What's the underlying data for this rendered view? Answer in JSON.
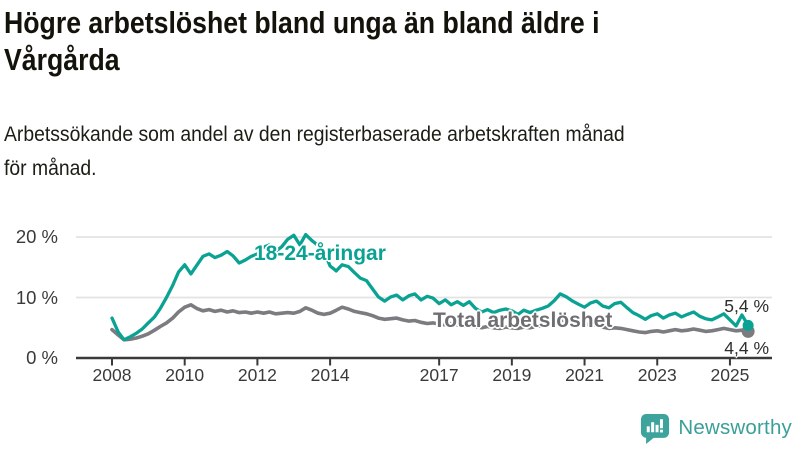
{
  "header": {
    "title_lines": [
      "Högre arbetslöshet bland unga än bland äldre i",
      "Vårgårda"
    ],
    "subtitle_lines": [
      "Arbetssökande som andel av den registerbaserade arbetskraften månad",
      "för månad."
    ]
  },
  "chart_data": {
    "type": "line",
    "title": "Högre arbetslöshet bland unga än bland äldre i Vårgårda",
    "subtitle": "Arbetssökande som andel av den registerbaserade arbetskraften månad för månad.",
    "unit": "%",
    "grid": "horizontal gridlines at 10 and 20, dark baseline at 0",
    "legend": "inline labels next to lines",
    "xlim": [
      2008,
      2025.6
    ],
    "ylim": [
      0,
      21
    ],
    "x_ticks": [
      2008,
      2010,
      2012,
      2014,
      2017,
      2019,
      2021,
      2023,
      2025
    ],
    "y_ticks": [
      {
        "value": 0,
        "label": "0 %"
      },
      {
        "value": 10,
        "label": "10 %"
      },
      {
        "value": 20,
        "label": "20 %"
      }
    ],
    "x": [
      2008,
      2008.17,
      2008.33,
      2008.5,
      2008.67,
      2008.83,
      2009,
      2009.17,
      2009.33,
      2009.5,
      2009.67,
      2009.83,
      2010,
      2010.17,
      2010.33,
      2010.5,
      2010.67,
      2010.83,
      2011,
      2011.17,
      2011.33,
      2011.5,
      2011.67,
      2011.83,
      2012,
      2012.17,
      2012.33,
      2012.5,
      2012.67,
      2012.83,
      2013,
      2013.17,
      2013.33,
      2013.5,
      2013.67,
      2013.83,
      2014,
      2014.17,
      2014.33,
      2014.5,
      2014.67,
      2014.83,
      2015,
      2015.17,
      2015.33,
      2015.5,
      2015.67,
      2015.83,
      2016,
      2016.17,
      2016.33,
      2016.5,
      2016.67,
      2016.83,
      2017,
      2017.17,
      2017.33,
      2017.5,
      2017.67,
      2017.83,
      2018,
      2018.17,
      2018.33,
      2018.5,
      2018.67,
      2018.83,
      2019,
      2019.17,
      2019.33,
      2019.5,
      2019.67,
      2019.83,
      2020,
      2020.17,
      2020.33,
      2020.5,
      2020.67,
      2020.83,
      2021,
      2021.17,
      2021.33,
      2021.5,
      2021.67,
      2021.83,
      2022,
      2022.17,
      2022.33,
      2022.5,
      2022.67,
      2022.83,
      2023,
      2023.17,
      2023.33,
      2023.5,
      2023.67,
      2023.83,
      2024,
      2024.17,
      2024.33,
      2024.5,
      2024.67,
      2024.83,
      2025,
      2025.17,
      2025.33,
      2025.5
    ],
    "series": [
      {
        "name": "18-24-åringar",
        "color": "#0aa293",
        "end_label": "5,4 %",
        "end_value": 5.4,
        "values": [
          6.6,
          4.3,
          3.0,
          3.5,
          4.1,
          4.8,
          5.8,
          6.8,
          8.2,
          10.0,
          12.0,
          14.2,
          15.4,
          13.9,
          15.3,
          16.8,
          17.2,
          16.6,
          17.0,
          17.6,
          16.9,
          15.7,
          16.2,
          16.8,
          17.2,
          18.3,
          18.7,
          17.6,
          18.4,
          19.6,
          20.3,
          18.7,
          20.4,
          19.4,
          18.6,
          17.6,
          15.2,
          14.4,
          15.4,
          15.1,
          14.1,
          13.2,
          12.8,
          11.4,
          10.1,
          9.4,
          10.1,
          10.4,
          9.6,
          10.3,
          10.6,
          9.6,
          10.2,
          9.9,
          9.0,
          9.6,
          8.8,
          9.3,
          8.7,
          9.3,
          8.2,
          7.6,
          8.0,
          7.5,
          7.9,
          8.1,
          7.8,
          7.2,
          7.9,
          7.5,
          7.9,
          8.2,
          8.6,
          9.5,
          10.6,
          10.1,
          9.4,
          8.9,
          8.4,
          9.1,
          9.4,
          8.6,
          8.3,
          9.0,
          9.2,
          8.3,
          7.5,
          7.0,
          6.4,
          7.0,
          7.3,
          6.6,
          7.1,
          7.4,
          6.8,
          7.2,
          7.6,
          6.9,
          6.5,
          6.3,
          6.8,
          7.3,
          6.3,
          5.3,
          7.1,
          5.4
        ]
      },
      {
        "name": "Total arbetslöshet",
        "color": "#7c7c80",
        "end_label": "4,4 %",
        "end_value": 4.4,
        "values": [
          4.7,
          3.8,
          3.0,
          3.1,
          3.3,
          3.6,
          4.0,
          4.6,
          5.2,
          5.8,
          6.6,
          7.6,
          8.4,
          8.8,
          8.2,
          7.8,
          8.0,
          7.7,
          7.9,
          7.6,
          7.8,
          7.5,
          7.6,
          7.4,
          7.6,
          7.4,
          7.6,
          7.3,
          7.4,
          7.5,
          7.4,
          7.7,
          8.3,
          7.9,
          7.4,
          7.2,
          7.4,
          7.9,
          8.4,
          8.1,
          7.7,
          7.5,
          7.3,
          7.0,
          6.6,
          6.4,
          6.5,
          6.6,
          6.3,
          6.1,
          6.2,
          5.9,
          5.7,
          5.8,
          5.6,
          5.5,
          5.7,
          5.5,
          5.3,
          5.4,
          5.2,
          5.0,
          5.2,
          5.0,
          4.9,
          5.1,
          5.0,
          4.9,
          5.1,
          5.0,
          5.2,
          5.3,
          5.5,
          5.9,
          6.3,
          6.1,
          5.9,
          5.7,
          5.5,
          5.6,
          5.4,
          5.1,
          4.9,
          5.0,
          4.9,
          4.7,
          4.5,
          4.3,
          4.2,
          4.4,
          4.5,
          4.3,
          4.5,
          4.7,
          4.5,
          4.6,
          4.8,
          4.6,
          4.4,
          4.5,
          4.7,
          4.9,
          4.7,
          4.5,
          4.6,
          4.4
        ]
      }
    ],
    "colors": {
      "grid": "#e3e3e3",
      "axis": "#3a3a3a",
      "tick_label": "#3a3a3a",
      "end_label": "#2e2e2e"
    }
  },
  "footer": {
    "brand": "Newsworthy",
    "brand_color": "#3b9f99",
    "logo_icon": "bar-chart-speech-bubble"
  }
}
